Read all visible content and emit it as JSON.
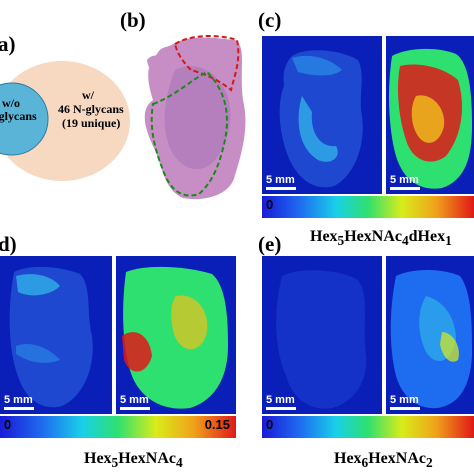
{
  "panels": {
    "a": {
      "label": "(a)",
      "inner_text_1": "w/o",
      "inner_text_2": "N-glycans",
      "outer_text_1": "w/",
      "outer_text_2": "46 N-glycans",
      "outer_text_3": "(19 unique)",
      "inner_color": "#5ab4d8",
      "outer_color": "#f7d8c0"
    },
    "b": {
      "label": "(b)"
    },
    "c": {
      "label": "(c)",
      "scale_label_left": "5 mm",
      "scale_label_right": "5 mm",
      "cbar_min": "0",
      "caption_parts": [
        "Hex",
        "5",
        "HexNAc",
        "4",
        "dHex",
        "1"
      ]
    },
    "d": {
      "label": "(d)",
      "scale_label_left": "5 mm",
      "scale_label_right": "5 mm",
      "cbar_min": "0",
      "cbar_max": "0.15",
      "caption_parts": [
        "Hex",
        "5",
        "HexNAc",
        "4"
      ]
    },
    "e": {
      "label": "(e)",
      "scale_label_left": "5 mm",
      "scale_label_right": "5 mm",
      "cbar_min": "0",
      "caption_parts": [
        "Hex",
        "6",
        "HexNAc",
        "2"
      ]
    }
  },
  "colors": {
    "image_bg": "#0a1fb8",
    "tissue_blue": "#2a66e0",
    "tissue_red": "#e02a1a"
  }
}
